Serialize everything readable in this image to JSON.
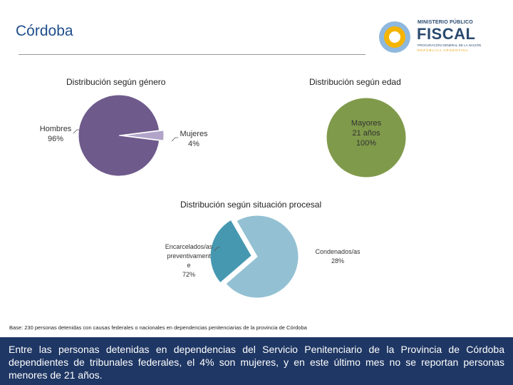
{
  "page": {
    "title": "Córdoba"
  },
  "logo": {
    "line1": "MINISTERIO PÚBLICO",
    "line2": "FISCAL",
    "line3": "PROCURACIÓN GENERAL DE LA NACIÓN",
    "line4": "REPÚBLICA ARGENTINA"
  },
  "chart_data": [
    {
      "type": "pie",
      "title": "Distribución según género",
      "slices": [
        {
          "label": "Hombres",
          "value": 96,
          "display": "96%",
          "color": "#6f5a8c"
        },
        {
          "label": "Mujeres",
          "value": 4,
          "display": "4%",
          "color": "#b2a4c8"
        }
      ]
    },
    {
      "type": "pie",
      "title": "Distribución según edad",
      "slices": [
        {
          "label": "Mayores 21 años",
          "label_lines": [
            "Mayores",
            "21 años"
          ],
          "value": 100,
          "display": "100%",
          "color": "#7f9a4a"
        }
      ]
    },
    {
      "type": "pie",
      "title": "Distribución según situación procesal",
      "slices": [
        {
          "label": "Encarcelados/as preventivamente",
          "label_lines": [
            "Encarcelados/as",
            "preventivament",
            "e"
          ],
          "value": 72,
          "display": "72%",
          "color": "#93c1d3"
        },
        {
          "label": "Condenados/as",
          "label_lines": [
            "Condenados/as"
          ],
          "value": 28,
          "display": "28%",
          "color": "#4698b1"
        }
      ]
    }
  ],
  "footnote": "Base: 230 personas detenidas con causas federales o nacionales en dependencias penitenciarias de la provincia de Córdoba",
  "summary": "Entre las personas detenidas en dependencias del Servicio Penitenciario de la Provincia de Córdoba dependientes de tribunales federales, el 4% son mujeres, y en este último mes no se reportan personas menores de 21 años."
}
